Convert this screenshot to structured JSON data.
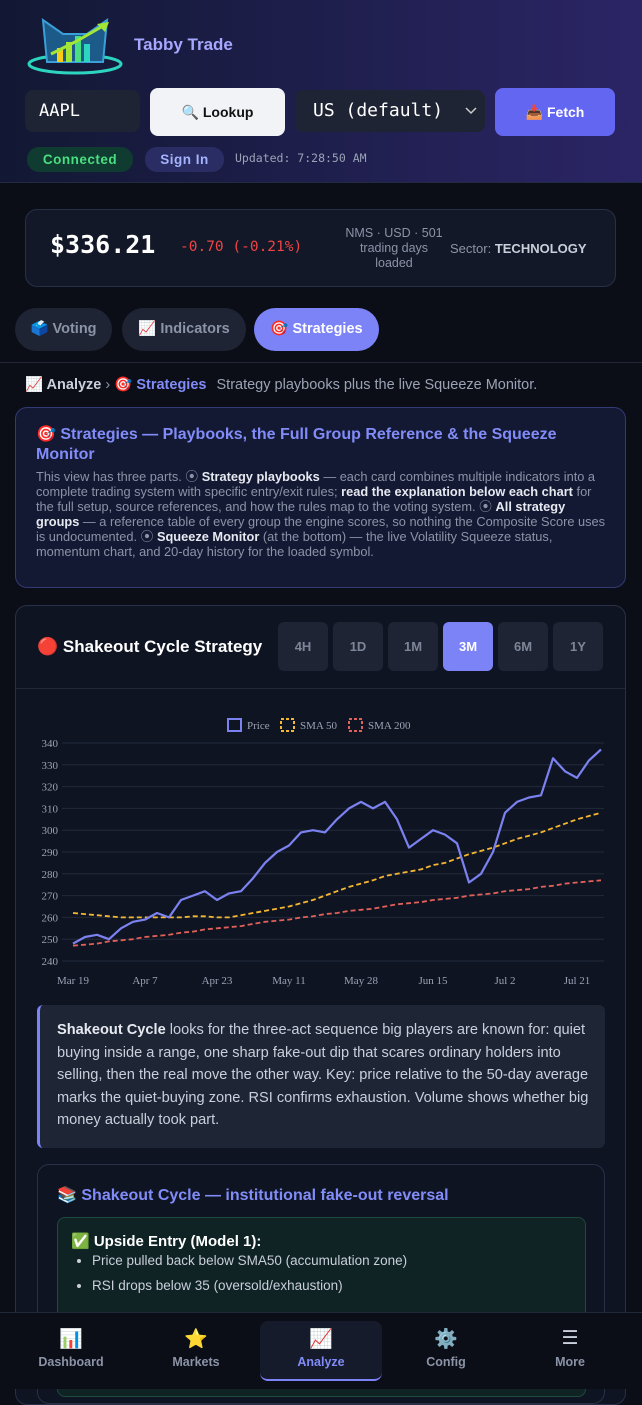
{
  "header": {
    "app_name": "Tabby Trade",
    "symbol_input": "AAPL",
    "lookup_button": "🔍 Lookup",
    "market_select": "US (default)",
    "fetch_button": "📥 Fetch",
    "status": "Connected",
    "sign_in": "Sign In",
    "updated": "Updated: 7:28:50 AM"
  },
  "quote": {
    "price": "$336.21",
    "change": "-0.70 (-0.21%)",
    "meta": "NMS · USD · 501 trading days loaded",
    "sector_label": "Sector:",
    "sector": "TECHNOLOGY"
  },
  "tabs": [
    {
      "label": "🗳️ Voting"
    },
    {
      "label": "📈 Indicators"
    },
    {
      "label": "🎯 Strategies",
      "active": true
    }
  ],
  "breadcrumb": {
    "root": "📈 Analyze",
    "separator": "›",
    "current": "🎯 Strategies",
    "description": "Strategy playbooks plus the live Squeeze Monitor."
  },
  "info": {
    "title": "🎯 Strategies — Playbooks, the Full Group Reference & the Squeeze Monitor",
    "segments": [
      {
        "text": "This view has three parts. ⦿ "
      },
      {
        "text": "Strategy playbooks",
        "bold": true
      },
      {
        "text": " — each card combines multiple indicators into a complete trading system with specific entry/exit rules; "
      },
      {
        "text": "read the explanation below each chart",
        "bold": true
      },
      {
        "text": " for the full setup, source references, and how the rules map to the voting system. ⦿ "
      },
      {
        "text": "All strategy groups",
        "bold": true
      },
      {
        "text": " — a reference table of every group the engine scores, so nothing the Composite Score uses is undocumented. ⦿ "
      },
      {
        "text": "Squeeze Monitor",
        "bold": true
      },
      {
        "text": " (at the bottom) — the live Volatility Squeeze status, momentum chart, and 20-day history for the loaded symbol."
      }
    ]
  },
  "strategy": {
    "title": "🔴 Shakeout Cycle Strategy",
    "ranges": [
      {
        "label": "4H"
      },
      {
        "label": "1D"
      },
      {
        "label": "1M"
      },
      {
        "label": "3M",
        "active": true
      },
      {
        "label": "6M"
      },
      {
        "label": "1Y"
      }
    ],
    "explanation": [
      {
        "text": "Shakeout Cycle",
        "bold": true
      },
      {
        "text": " looks for the three-act sequence big players are known for: quiet buying inside a range, one sharp fake-out dip that scares ordinary holders into selling, then the real move the other way. Key: price relative to the 50-day average marks the quiet-buying zone. RSI confirms exhaustion. Volume shows whether big money actually took part."
      }
    ],
    "playbook_title": "📚 Shakeout Cycle — institutional fake-out reversal",
    "entry_title": "✅ Upside Entry (Model 1):",
    "entry_rules": [
      "Price pulled back below SMA50 (accumulation zone)",
      "RSI drops below 35 (oversold/exhaustion)"
    ]
  },
  "chart_data": {
    "type": "line",
    "categories": [
      "Mar 19",
      null,
      null,
      null,
      null,
      null,
      "Apr 7",
      null,
      null,
      null,
      null,
      null,
      "Apr 23",
      null,
      null,
      null,
      null,
      null,
      "May 11",
      null,
      null,
      null,
      null,
      null,
      "May 28",
      null,
      null,
      null,
      null,
      null,
      "Jun 15",
      null,
      null,
      null,
      null,
      null,
      "Jul 2",
      null,
      null,
      null,
      null,
      null,
      "Jul 21",
      null,
      null
    ],
    "series": [
      {
        "name": "Price",
        "color": "#7b82f0",
        "dashed": false,
        "values": [
          248,
          251,
          252,
          250,
          255,
          258,
          259,
          262,
          260,
          268,
          270,
          272,
          268,
          271,
          272,
          278,
          285,
          290,
          293,
          299,
          300,
          299,
          305,
          310,
          313,
          310,
          313,
          305,
          292,
          296,
          300,
          298,
          294,
          276,
          280,
          290,
          308,
          313,
          315,
          316,
          333,
          327,
          324,
          332,
          337
        ]
      },
      {
        "name": "SMA 50",
        "color": "#f5b731",
        "dashed": true,
        "values": [
          262,
          261.5,
          261,
          260.5,
          260,
          260,
          260,
          260,
          260,
          260,
          260.5,
          260.5,
          260,
          260,
          261,
          262,
          263,
          264,
          265,
          266.5,
          268,
          270,
          272,
          274,
          275.5,
          277,
          279,
          280,
          281,
          282,
          284,
          285,
          287,
          289,
          290.5,
          292,
          294,
          296,
          297.5,
          299,
          301,
          303,
          305,
          306.5,
          308
        ]
      },
      {
        "name": "SMA 200",
        "color": "#e0605a",
        "dashed": true,
        "values": [
          247,
          247.5,
          248,
          249,
          249.5,
          250,
          251,
          251.5,
          252,
          253,
          253.5,
          254.5,
          255,
          255.5,
          256,
          257,
          258,
          258.5,
          259,
          260,
          260.5,
          261.5,
          262,
          263,
          263.5,
          264,
          265,
          266,
          266.5,
          267,
          268,
          268.5,
          269,
          270,
          270.5,
          271,
          272,
          272.5,
          273,
          274,
          274.5,
          275.5,
          276,
          276.5,
          277
        ]
      }
    ],
    "ylim": [
      240,
      340
    ],
    "yticks": [
      240,
      250,
      260,
      270,
      280,
      290,
      300,
      310,
      320,
      330,
      340
    ],
    "grid": true,
    "legend": "top"
  },
  "nav": [
    {
      "icon": "📊",
      "label": "Dashboard"
    },
    {
      "icon": "⭐",
      "label": "Markets"
    },
    {
      "icon": "📈",
      "label": "Analyze",
      "active": true
    },
    {
      "icon": "⚙️",
      "label": "Config"
    },
    {
      "icon": "☰",
      "label": "More"
    }
  ]
}
